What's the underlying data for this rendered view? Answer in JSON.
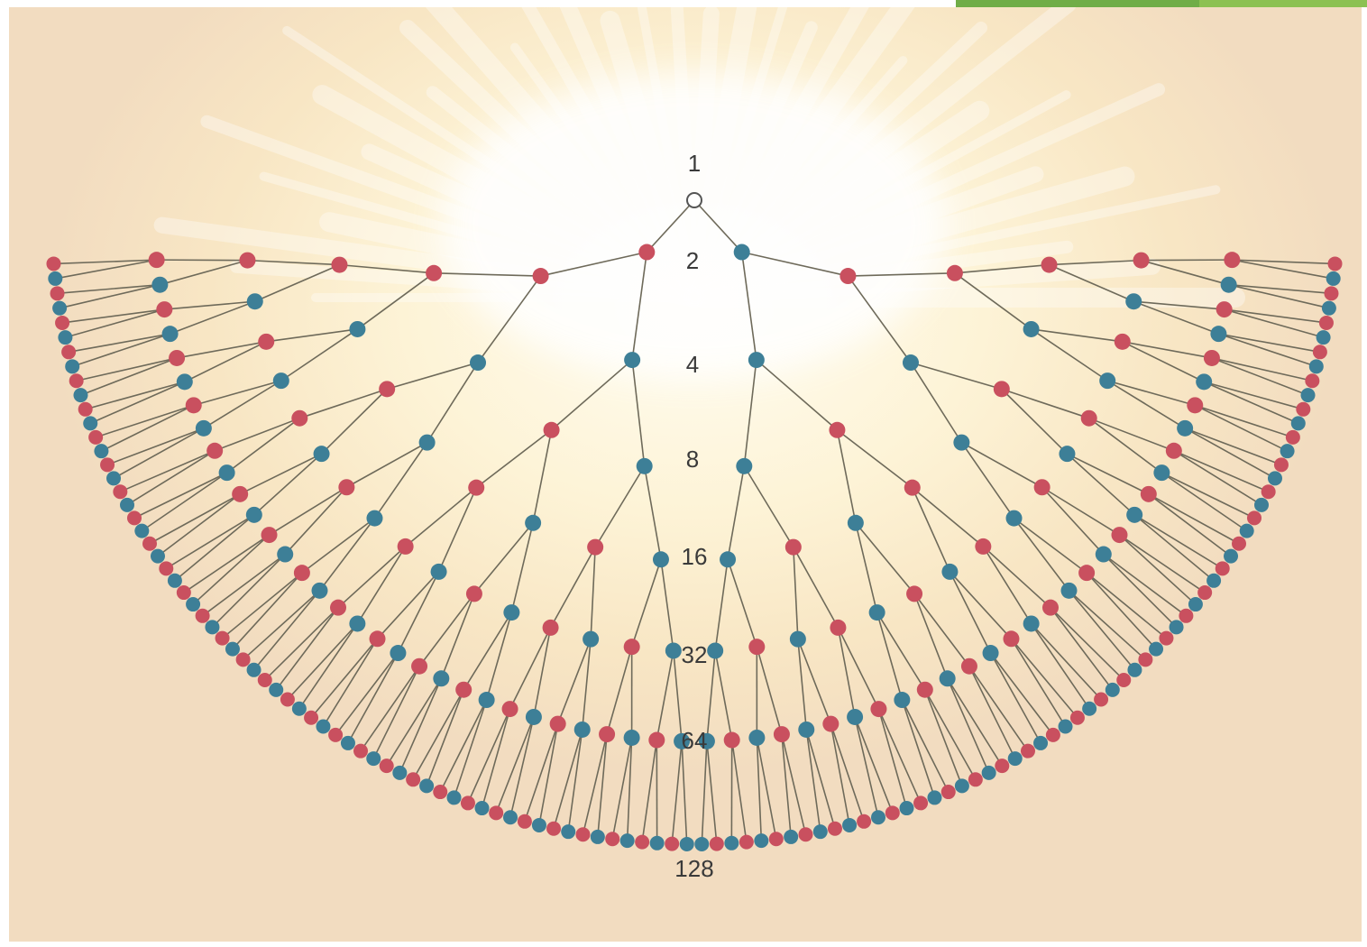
{
  "diagram": {
    "generation_labels": [
      "1",
      "2",
      "4",
      "8",
      "16",
      "32",
      "64",
      "128"
    ],
    "node_colors": {
      "red": "#c9505f",
      "blue": "#3d7f97"
    },
    "root_fill": "#ffffff",
    "edge_color": "#6e6a5a"
  }
}
